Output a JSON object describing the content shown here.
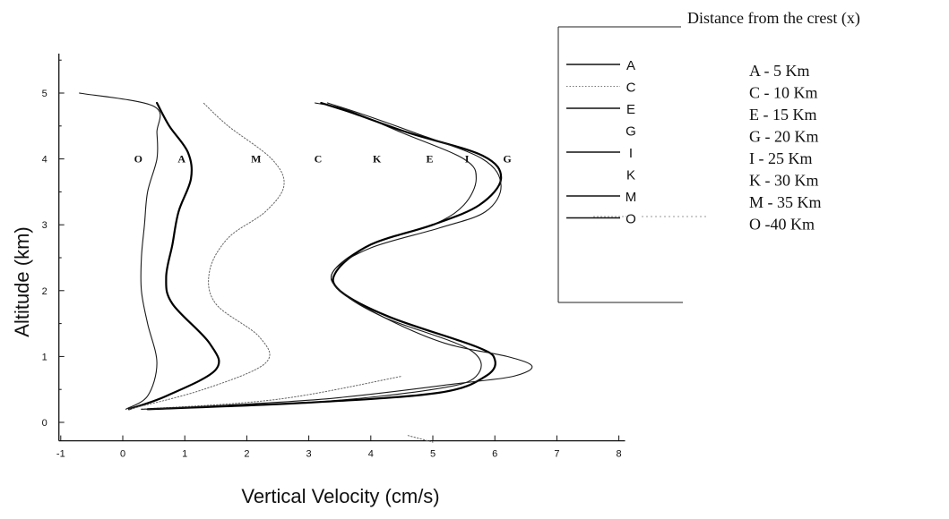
{
  "chart_data": {
    "type": "line",
    "title": "",
    "xlabel": "Vertical Velocity (cm/s)",
    "ylabel": "Altitude (km)",
    "xlim": [
      -1,
      8
    ],
    "ylim": [
      -0.5,
      5.5
    ],
    "xticks": [
      "-1",
      "0",
      "1",
      "2",
      "3",
      "4",
      "5",
      "6",
      "7",
      "8"
    ],
    "yticks": [
      "0",
      "1",
      "2",
      "3",
      "4",
      "5"
    ],
    "legend_title": "Distance from the crest (x)",
    "legend_placement": "right",
    "curve_tags": [
      "O",
      "A",
      "M",
      "C",
      "K",
      "E",
      "I",
      "G"
    ],
    "series": [
      {
        "name": "O",
        "legend_desc": "O -40 Km",
        "style": "thin",
        "points": [
          [
            0.05,
            0.2
          ],
          [
            0.4,
            0.4
          ],
          [
            0.55,
            0.9
          ],
          [
            0.4,
            1.5
          ],
          [
            0.3,
            2.0
          ],
          [
            0.3,
            2.5
          ],
          [
            0.35,
            3.0
          ],
          [
            0.4,
            3.5
          ],
          [
            0.55,
            4.0
          ],
          [
            0.55,
            4.4
          ],
          [
            0.5,
            4.8
          ],
          [
            -0.7,
            5.0
          ]
        ]
      },
      {
        "name": "A",
        "legend_desc": "A - 5 Km",
        "style": "thick",
        "points": [
          [
            0.1,
            0.2
          ],
          [
            0.7,
            0.4
          ],
          [
            1.5,
            0.8
          ],
          [
            1.4,
            1.2
          ],
          [
            0.8,
            1.8
          ],
          [
            0.7,
            2.2
          ],
          [
            0.8,
            2.7
          ],
          [
            0.9,
            3.2
          ],
          [
            1.1,
            3.7
          ],
          [
            1.05,
            4.1
          ],
          [
            0.75,
            4.5
          ],
          [
            0.55,
            4.85
          ]
        ]
      },
      {
        "name": "M",
        "legend_desc": "M - 35 Km",
        "style": "dotted",
        "points": [
          [
            0.1,
            0.2
          ],
          [
            1.3,
            0.5
          ],
          [
            2.3,
            0.9
          ],
          [
            2.2,
            1.3
          ],
          [
            1.5,
            1.8
          ],
          [
            1.4,
            2.3
          ],
          [
            1.7,
            2.8
          ],
          [
            2.3,
            3.2
          ],
          [
            2.6,
            3.6
          ],
          [
            2.4,
            4.0
          ],
          [
            1.7,
            4.5
          ],
          [
            1.3,
            4.85
          ]
        ]
      },
      {
        "name": "C",
        "legend_desc": "C - 10 Km",
        "style": "dotted",
        "points": [
          [
            0.3,
            0.2
          ],
          [
            2.5,
            0.35
          ],
          [
            4.5,
            0.7
          ]
        ]
      },
      {
        "name": "K",
        "legend_desc": "K - 30 Km",
        "style": "dotted",
        "points": [
          [
            4.6,
            -0.2
          ],
          [
            4.8,
            -0.25
          ],
          [
            5.0,
            -0.3
          ]
        ]
      },
      {
        "name": "E",
        "legend_desc": "E - 15 Km",
        "style": "thin",
        "points": [
          [
            0.3,
            0.2
          ],
          [
            3.0,
            0.3
          ],
          [
            5.0,
            0.5
          ],
          [
            5.7,
            0.7
          ],
          [
            5.6,
            1.1
          ],
          [
            4.2,
            1.6
          ],
          [
            3.5,
            2.0
          ],
          [
            3.4,
            2.3
          ],
          [
            4.0,
            2.7
          ],
          [
            5.0,
            3.0
          ],
          [
            5.5,
            3.3
          ],
          [
            5.7,
            3.7
          ],
          [
            5.5,
            4.0
          ],
          [
            4.5,
            4.4
          ],
          [
            3.6,
            4.75
          ],
          [
            3.1,
            4.85
          ]
        ]
      },
      {
        "name": "I",
        "legend_desc": "I - 25 Km",
        "style": "thick",
        "points": [
          [
            0.4,
            0.2
          ],
          [
            3.0,
            0.3
          ],
          [
            5.1,
            0.45
          ],
          [
            5.85,
            0.7
          ],
          [
            6.0,
            0.95
          ],
          [
            5.7,
            1.15
          ],
          [
            4.3,
            1.6
          ],
          [
            3.5,
            2.0
          ],
          [
            3.45,
            2.3
          ],
          [
            4.0,
            2.7
          ],
          [
            5.0,
            3.0
          ],
          [
            5.75,
            3.3
          ],
          [
            6.1,
            3.7
          ],
          [
            5.8,
            4.05
          ],
          [
            4.6,
            4.4
          ],
          [
            3.7,
            4.7
          ],
          [
            3.2,
            4.85
          ]
        ]
      },
      {
        "name": "G",
        "legend_desc": "G - 20 Km",
        "style": "thin",
        "points": [
          [
            0.4,
            0.2
          ],
          [
            3.2,
            0.35
          ],
          [
            5.5,
            0.6
          ],
          [
            6.3,
            0.7
          ],
          [
            6.6,
            0.85
          ],
          [
            6.2,
            1.0
          ],
          [
            5.2,
            1.2
          ],
          [
            4.2,
            1.6
          ],
          [
            3.5,
            2.0
          ],
          [
            3.4,
            2.3
          ],
          [
            4.0,
            2.65
          ],
          [
            5.1,
            2.95
          ],
          [
            5.85,
            3.2
          ],
          [
            6.1,
            3.6
          ],
          [
            5.8,
            4.0
          ],
          [
            4.7,
            4.4
          ],
          [
            3.8,
            4.7
          ],
          [
            3.3,
            4.85
          ]
        ]
      }
    ],
    "legend_items": [
      {
        "code": "A",
        "desc": "A - 5 Km",
        "line": "solid"
      },
      {
        "code": "C",
        "desc": "C - 10 Km",
        "line": "dotted"
      },
      {
        "code": "E",
        "desc": "E - 15 Km",
        "line": "solid"
      },
      {
        "code": "G",
        "desc": "G - 20 Km",
        "line": "none"
      },
      {
        "code": "I",
        "desc": "I - 25 Km",
        "line": "solid"
      },
      {
        "code": "K",
        "desc": "K - 30 Km",
        "line": "none"
      },
      {
        "code": "M",
        "desc": "M - 35 Km",
        "line": "solid"
      },
      {
        "code": "O",
        "desc": "O -40 Km",
        "line": "solid"
      }
    ]
  }
}
